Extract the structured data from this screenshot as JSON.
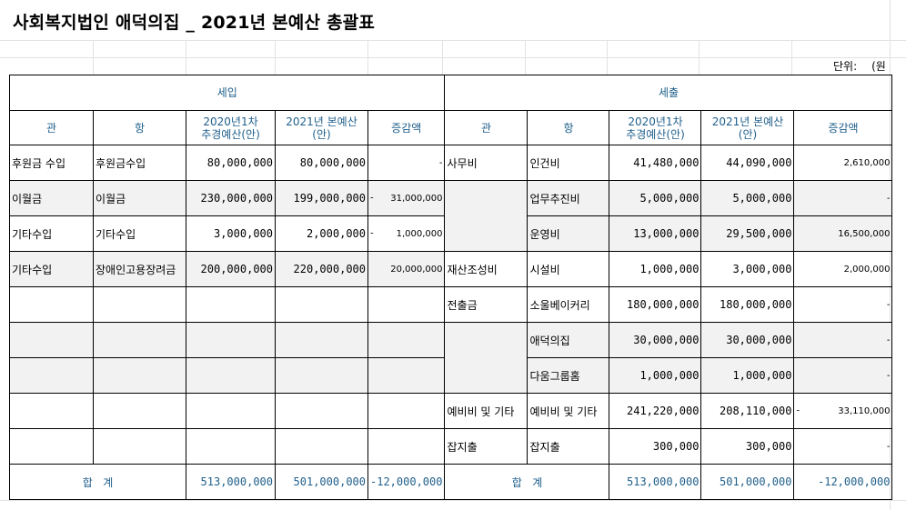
{
  "title": "사회복지법인 애덕의집 _ 2021년 본예산 총괄표",
  "unit": {
    "label": "단위:",
    "value": "(원"
  },
  "sections": {
    "income": "세입",
    "expense": "세출"
  },
  "headers": {
    "gwan": "관",
    "hang": "항",
    "prev_line1": "2020년1차",
    "prev_line2": "추경예산(안)",
    "cur_line1": "2021년 본예산",
    "cur_line2": "(안)",
    "diff": "증감액"
  },
  "rows": [
    {
      "in_gwan": "후원금 수입",
      "in_hang": "후원금수입",
      "in_prev": "80,000,000",
      "in_cur": "80,000,000",
      "in_lead": "",
      "in_diff": "-",
      "ex_gwan": "사무비",
      "ex_hang": "인건비",
      "ex_prev": "41,480,000",
      "ex_cur": "44,090,000",
      "ex_lead": "",
      "ex_diff": "2,610,000"
    },
    {
      "in_gwan": "이월금",
      "in_hang": "이월금",
      "in_prev": "230,000,000",
      "in_cur": "199,000,000",
      "in_lead": "-",
      "in_diff": "31,000,000",
      "ex_gwan": "",
      "ex_hang": "업무추진비",
      "ex_prev": "5,000,000",
      "ex_cur": "5,000,000",
      "ex_lead": "",
      "ex_diff": "-"
    },
    {
      "in_gwan": "기타수입",
      "in_hang": "기타수입",
      "in_prev": "3,000,000",
      "in_cur": "2,000,000",
      "in_lead": "-",
      "in_diff": "1,000,000",
      "ex_gwan": "",
      "ex_hang": "운영비",
      "ex_prev": "13,000,000",
      "ex_cur": "29,500,000",
      "ex_lead": "",
      "ex_diff": "16,500,000"
    },
    {
      "in_gwan": "기타수입",
      "in_hang": "장애인고용장려금",
      "in_prev": "200,000,000",
      "in_cur": "220,000,000",
      "in_lead": "",
      "in_diff": "20,000,000",
      "ex_gwan": "재산조성비",
      "ex_hang": "시설비",
      "ex_prev": "1,000,000",
      "ex_cur": "3,000,000",
      "ex_lead": "",
      "ex_diff": "2,000,000"
    },
    {
      "in_gwan": "",
      "in_hang": "",
      "in_prev": "",
      "in_cur": "",
      "in_lead": "",
      "in_diff": "",
      "ex_gwan": "전출금",
      "ex_hang": "소울베이커리",
      "ex_prev": "180,000,000",
      "ex_cur": "180,000,000",
      "ex_lead": "",
      "ex_diff": "-"
    },
    {
      "in_gwan": "",
      "in_hang": "",
      "in_prev": "",
      "in_cur": "",
      "in_lead": "",
      "in_diff": "",
      "ex_gwan": "",
      "ex_hang": "애덕의집",
      "ex_prev": "30,000,000",
      "ex_cur": "30,000,000",
      "ex_lead": "",
      "ex_diff": "-"
    },
    {
      "in_gwan": "",
      "in_hang": "",
      "in_prev": "",
      "in_cur": "",
      "in_lead": "",
      "in_diff": "",
      "ex_gwan": "",
      "ex_hang": "다움그룹홈",
      "ex_prev": "1,000,000",
      "ex_cur": "1,000,000",
      "ex_lead": "",
      "ex_diff": "-"
    },
    {
      "in_gwan": "",
      "in_hang": "",
      "in_prev": "",
      "in_cur": "",
      "in_lead": "",
      "in_diff": "",
      "ex_gwan": "예비비 및 기타",
      "ex_hang": "예비비 및 기타",
      "ex_prev": "241,220,000",
      "ex_cur": "208,110,000",
      "ex_lead": "-",
      "ex_diff": "33,110,000"
    },
    {
      "in_gwan": "",
      "in_hang": "",
      "in_prev": "",
      "in_cur": "",
      "in_lead": "",
      "in_diff": "",
      "ex_gwan": "잡지출",
      "ex_hang": "잡지출",
      "ex_prev": "300,000",
      "ex_cur": "300,000",
      "ex_lead": "",
      "ex_diff": "-"
    }
  ],
  "total": {
    "label": "합   계",
    "in_prev": "513,000,000",
    "in_cur": "501,000,000",
    "in_diff": "-12,000,000",
    "ex_prev": "513,000,000",
    "ex_cur": "501,000,000",
    "ex_diff": "-12,000,000"
  }
}
